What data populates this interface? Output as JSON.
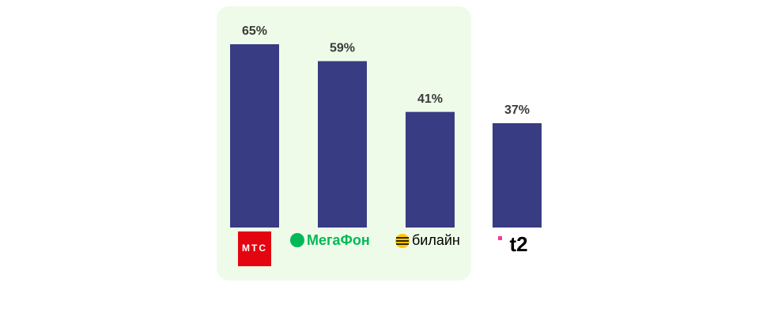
{
  "chart_data": {
    "type": "bar",
    "categories": [
      "МТС",
      "МегаФон",
      "билайн",
      "t2"
    ],
    "values": [
      65,
      59,
      41,
      37
    ],
    "value_labels": [
      "65%",
      "59%",
      "41%",
      "37%"
    ],
    "color": "#373c83"
  }
}
